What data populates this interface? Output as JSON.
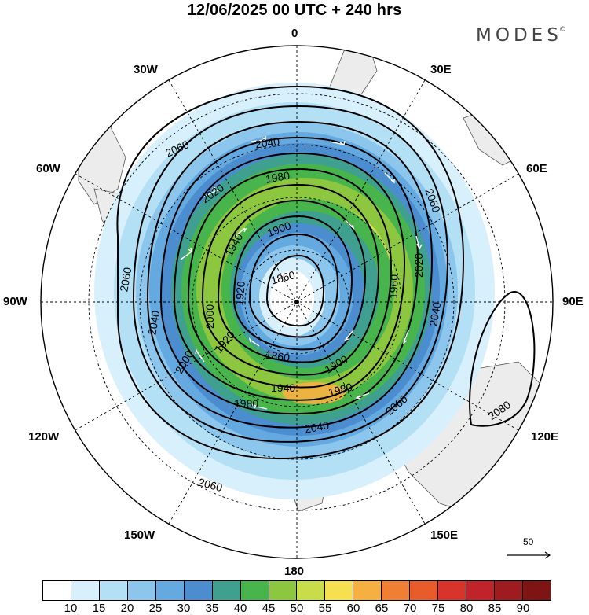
{
  "title": "12/06/2025  00 UTC  + 240 hrs",
  "brand": "MODES",
  "brand_mark": "©",
  "longitude_labels": {
    "n0": "0",
    "e30": "30E",
    "e60": "60E",
    "e90": "90E",
    "e120": "120E",
    "e150": "150E",
    "s180": "180",
    "w150": "150W",
    "w120": "120W",
    "w90": "90W",
    "w60": "60W",
    "w30": "30W"
  },
  "contour_labels": [
    "2060",
    "2040",
    "1980",
    "2020",
    "1940",
    "1900",
    "1860",
    "2080",
    "2000",
    "1920",
    "1960"
  ],
  "reference_vector": "50",
  "colorbar": {
    "labels": [
      "10",
      "15",
      "20",
      "25",
      "30",
      "35",
      "40",
      "45",
      "50",
      "55",
      "60",
      "65",
      "70",
      "75",
      "80",
      "85",
      "90"
    ],
    "colors": [
      "#ffffff",
      "#d8f0fb",
      "#b4e0f6",
      "#8cc6ec",
      "#64a9e0",
      "#4b8dcf",
      "#3fa08f",
      "#48b44c",
      "#8dc63f",
      "#c9dc4a",
      "#f7e04f",
      "#f6b042",
      "#ef7f33",
      "#e85c2c",
      "#d9342b",
      "#c0232a",
      "#9e1b1f",
      "#7e1414"
    ]
  }
}
